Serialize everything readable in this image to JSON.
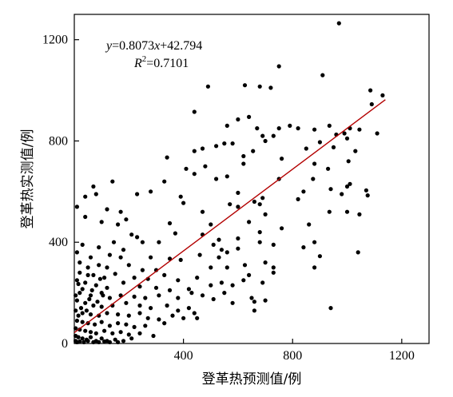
{
  "chart_data": {
    "type": "scatter",
    "xlabel": "登革热预测值/例",
    "ylabel": "登革热实测值/例",
    "xlim": [
      0,
      1300
    ],
    "ylim": [
      0,
      1300
    ],
    "xticks": [
      0,
      400,
      800,
      1200
    ],
    "yticks": [
      0,
      400,
      800,
      1200
    ],
    "equation": {
      "y_var": "y",
      "rhs_prefix": "=0.8073",
      "x_var": "x",
      "rhs_suffix": "+42.794",
      "r_var": "R",
      "r_exp": "2",
      "r_value": "=0.7101"
    },
    "fit": {
      "slope": 0.8073,
      "intercept": 42.794,
      "x_range": [
        0,
        1140
      ],
      "color": "#b30000"
    },
    "point_color": "#000000",
    "points": [
      [
        970,
        1265
      ],
      [
        750,
        1095
      ],
      [
        490,
        1015
      ],
      [
        625,
        1020
      ],
      [
        680,
        1015
      ],
      [
        720,
        1010
      ],
      [
        910,
        1060
      ],
      [
        1085,
        1000
      ],
      [
        1130,
        980
      ],
      [
        1090,
        945
      ],
      [
        440,
        915
      ],
      [
        600,
        885
      ],
      [
        640,
        895
      ],
      [
        790,
        860
      ],
      [
        560,
        860
      ],
      [
        670,
        850
      ],
      [
        750,
        850
      ],
      [
        820,
        850
      ],
      [
        880,
        845
      ],
      [
        935,
        860
      ],
      [
        1010,
        850
      ],
      [
        1045,
        845
      ],
      [
        960,
        825
      ],
      [
        990,
        830
      ],
      [
        1000,
        810
      ],
      [
        1110,
        830
      ],
      [
        690,
        820
      ],
      [
        730,
        820
      ],
      [
        580,
        790
      ],
      [
        550,
        790
      ],
      [
        520,
        780
      ],
      [
        470,
        770
      ],
      [
        440,
        760
      ],
      [
        850,
        770
      ],
      [
        900,
        795
      ],
      [
        950,
        775
      ],
      [
        1030,
        760
      ],
      [
        760,
        730
      ],
      [
        340,
        735
      ],
      [
        620,
        740
      ],
      [
        655,
        760
      ],
      [
        700,
        800
      ],
      [
        1005,
        720
      ],
      [
        480,
        700
      ],
      [
        410,
        690
      ],
      [
        620,
        710
      ],
      [
        880,
        710
      ],
      [
        930,
        690
      ],
      [
        520,
        650
      ],
      [
        560,
        660
      ],
      [
        750,
        650
      ],
      [
        875,
        650
      ],
      [
        1000,
        620
      ],
      [
        1010,
        630
      ],
      [
        330,
        640
      ],
      [
        440,
        670
      ],
      [
        140,
        640
      ],
      [
        70,
        620
      ],
      [
        230,
        590
      ],
      [
        280,
        600
      ],
      [
        390,
        580
      ],
      [
        600,
        595
      ],
      [
        840,
        600
      ],
      [
        940,
        610
      ],
      [
        980,
        590
      ],
      [
        1070,
        605
      ],
      [
        1075,
        585
      ],
      [
        820,
        570
      ],
      [
        400,
        555
      ],
      [
        660,
        560
      ],
      [
        570,
        550
      ],
      [
        600,
        540
      ],
      [
        680,
        550
      ],
      [
        690,
        575
      ],
      [
        40,
        580
      ],
      [
        80,
        590
      ],
      [
        10,
        540
      ],
      [
        120,
        530
      ],
      [
        170,
        520
      ],
      [
        190,
        490
      ],
      [
        470,
        520
      ],
      [
        700,
        510
      ],
      [
        1000,
        520
      ],
      [
        1045,
        510
      ],
      [
        935,
        520
      ],
      [
        40,
        500
      ],
      [
        100,
        480
      ],
      [
        160,
        470
      ],
      [
        500,
        470
      ],
      [
        350,
        475
      ],
      [
        640,
        480
      ],
      [
        860,
        470
      ],
      [
        210,
        430
      ],
      [
        230,
        420
      ],
      [
        370,
        435
      ],
      [
        470,
        430
      ],
      [
        680,
        440
      ],
      [
        760,
        455
      ],
      [
        145,
        400
      ],
      [
        250,
        400
      ],
      [
        310,
        400
      ],
      [
        530,
        410
      ],
      [
        600,
        415
      ],
      [
        680,
        400
      ],
      [
        880,
        400
      ],
      [
        30,
        390
      ],
      [
        90,
        380
      ],
      [
        180,
        370
      ],
      [
        510,
        390
      ],
      [
        540,
        370
      ],
      [
        600,
        375
      ],
      [
        730,
        390
      ],
      [
        840,
        380
      ],
      [
        10,
        360
      ],
      [
        60,
        340
      ],
      [
        130,
        350
      ],
      [
        170,
        340
      ],
      [
        280,
        340
      ],
      [
        350,
        335
      ],
      [
        460,
        350
      ],
      [
        530,
        340
      ],
      [
        560,
        360
      ],
      [
        900,
        345
      ],
      [
        1040,
        360
      ],
      [
        20,
        320
      ],
      [
        50,
        300
      ],
      [
        90,
        310
      ],
      [
        120,
        300
      ],
      [
        200,
        310
      ],
      [
        250,
        290
      ],
      [
        300,
        290
      ],
      [
        390,
        330
      ],
      [
        500,
        300
      ],
      [
        560,
        300
      ],
      [
        625,
        310
      ],
      [
        700,
        320
      ],
      [
        730,
        300
      ],
      [
        880,
        300
      ],
      [
        20,
        280
      ],
      [
        70,
        270
      ],
      [
        110,
        260
      ],
      [
        150,
        275
      ],
      [
        220,
        260
      ],
      [
        270,
        255
      ],
      [
        330,
        270
      ],
      [
        380,
        250
      ],
      [
        450,
        260
      ],
      [
        640,
        270
      ],
      [
        730,
        280
      ],
      [
        10,
        250
      ],
      [
        40,
        240
      ],
      [
        80,
        230
      ],
      [
        120,
        220
      ],
      [
        180,
        240
      ],
      [
        240,
        225
      ],
      [
        300,
        220
      ],
      [
        350,
        210
      ],
      [
        420,
        215
      ],
      [
        500,
        230
      ],
      [
        540,
        240
      ],
      [
        580,
        230
      ],
      [
        620,
        250
      ],
      [
        690,
        240
      ],
      [
        20,
        200
      ],
      [
        60,
        190
      ],
      [
        100,
        200
      ],
      [
        130,
        180
      ],
      [
        170,
        190
      ],
      [
        220,
        185
      ],
      [
        260,
        180
      ],
      [
        310,
        190
      ],
      [
        380,
        180
      ],
      [
        430,
        200
      ],
      [
        470,
        190
      ],
      [
        510,
        175
      ],
      [
        550,
        200
      ],
      [
        650,
        180
      ],
      [
        660,
        165
      ],
      [
        10,
        170
      ],
      [
        40,
        160
      ],
      [
        70,
        150
      ],
      [
        100,
        145
      ],
      [
        140,
        150
      ],
      [
        190,
        160
      ],
      [
        240,
        150
      ],
      [
        280,
        140
      ],
      [
        340,
        150
      ],
      [
        380,
        130
      ],
      [
        420,
        140
      ],
      [
        580,
        160
      ],
      [
        700,
        170
      ],
      [
        5,
        130
      ],
      [
        30,
        120
      ],
      [
        60,
        115
      ],
      [
        90,
        110
      ],
      [
        120,
        120
      ],
      [
        160,
        115
      ],
      [
        200,
        110
      ],
      [
        240,
        120
      ],
      [
        270,
        100
      ],
      [
        310,
        95
      ],
      [
        360,
        110
      ],
      [
        400,
        100
      ],
      [
        440,
        120
      ],
      [
        660,
        130
      ],
      [
        940,
        140
      ],
      [
        10,
        90
      ],
      [
        30,
        85
      ],
      [
        50,
        80
      ],
      [
        75,
        75
      ],
      [
        100,
        85
      ],
      [
        130,
        70
      ],
      [
        160,
        80
      ],
      [
        190,
        75
      ],
      [
        220,
        65
      ],
      [
        260,
        70
      ],
      [
        330,
        80
      ],
      [
        450,
        100
      ],
      [
        5,
        60
      ],
      [
        20,
        55
      ],
      [
        40,
        50
      ],
      [
        60,
        45
      ],
      [
        80,
        40
      ],
      [
        110,
        50
      ],
      [
        140,
        40
      ],
      [
        170,
        45
      ],
      [
        200,
        35
      ],
      [
        240,
        40
      ],
      [
        290,
        30
      ],
      [
        5,
        30
      ],
      [
        15,
        25
      ],
      [
        30,
        20
      ],
      [
        45,
        15
      ],
      [
        60,
        25
      ],
      [
        80,
        10
      ],
      [
        100,
        20
      ],
      [
        120,
        10
      ],
      [
        150,
        15
      ],
      [
        180,
        10
      ],
      [
        210,
        20
      ],
      [
        5,
        10
      ],
      [
        10,
        5
      ],
      [
        20,
        8
      ],
      [
        35,
        5
      ],
      [
        50,
        10
      ],
      [
        70,
        5
      ],
      [
        90,
        5
      ],
      [
        110,
        8
      ],
      [
        130,
        5
      ],
      [
        160,
        5
      ],
      [
        25,
        140
      ],
      [
        15,
        110
      ],
      [
        45,
        130
      ],
      [
        55,
        175
      ],
      [
        85,
        165
      ],
      [
        105,
        190
      ],
      [
        30,
        215
      ],
      [
        65,
        210
      ],
      [
        15,
        235
      ],
      [
        50,
        270
      ],
      [
        95,
        255
      ],
      [
        5,
        190
      ]
    ]
  }
}
